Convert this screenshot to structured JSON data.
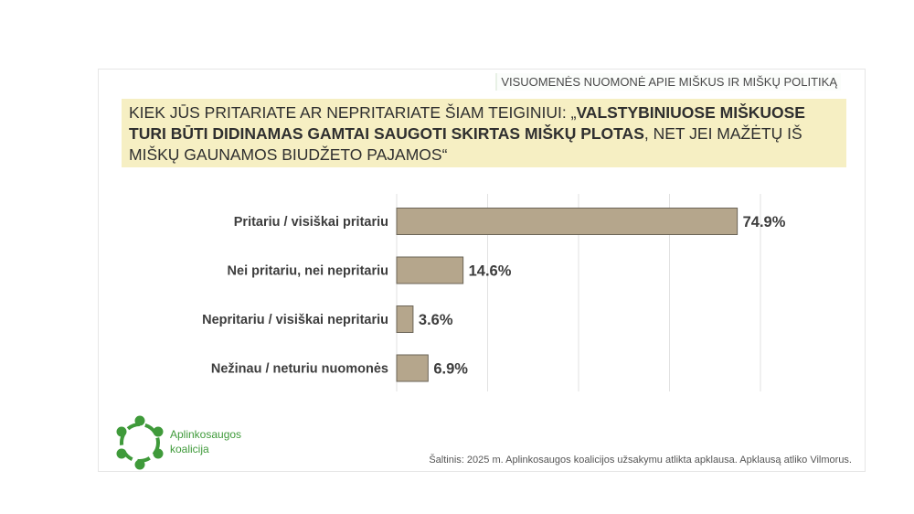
{
  "topic": "VISUOMENĖS NUOMONĖ APIE MIŠKUS IR MIŠKŲ POLITIKĄ",
  "question": {
    "lead": "KIEK JŪS PRITARIATE AR NEPRITARIATE ŠIAM TEIGINIUI: „",
    "bold": "VALSTYBINIUOSE MIŠKUOSE TURI BŪTI DIDINAMAS GAMTAI SAUGOTI SKIRTAS MIŠKŲ PLOTAS",
    "tail": ", NET JEI MAŽĖTŲ IŠ MIŠKŲ GAUNAMOS BIUDŽETO PAJAMOS“"
  },
  "chart_data": {
    "type": "bar",
    "orientation": "horizontal",
    "categories": [
      "Pritariu / visiškai pritariu",
      "Nei pritariu, nei nepritariu",
      "Nepritariu / visiškai nepritariu",
      "Nežinau / neturiu nuomonės"
    ],
    "values": [
      74.9,
      14.6,
      3.6,
      6.9
    ],
    "value_labels": [
      "74.9%",
      "14.6%",
      "3.6%",
      "6.9%"
    ],
    "xlim": [
      0,
      80
    ],
    "grid": true,
    "bar_color": "#b5a68c"
  },
  "logo": {
    "line1": "Aplinkosaugos",
    "line2": "koalicija",
    "color": "#3f9a3a"
  },
  "source": "Šaltinis: 2025 m. Aplinkosaugos koalicijos užsakymu atlikta apklausa. Apklausą atliko Vilmorus."
}
